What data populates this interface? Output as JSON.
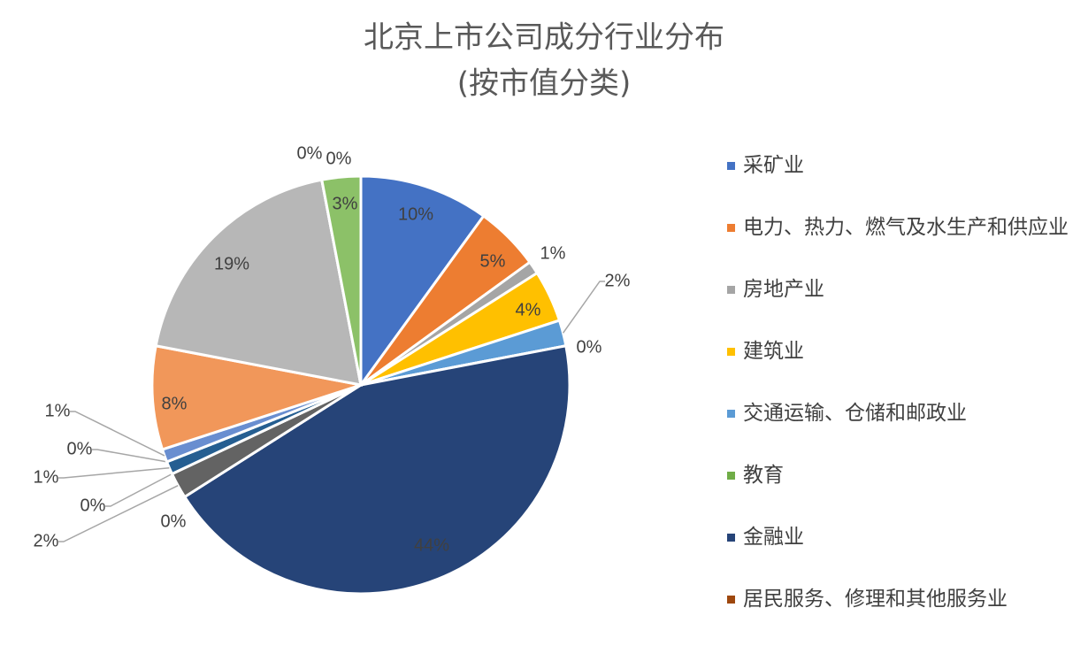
{
  "chart_data": {
    "type": "pie",
    "title": "北京上市公司成分行业分布",
    "subtitle": "(按市值分类)",
    "categories": [
      "采矿业",
      "电力、热力、燃气及水生产和供应业",
      "房地产业",
      "建筑业",
      "交通运输、仓储和邮政业",
      "教育",
      "金融业",
      "居民服务、修理和其他服务业",
      null,
      null,
      null,
      null,
      null,
      null,
      null,
      null,
      null,
      null
    ],
    "values": [
      10,
      5,
      1,
      4,
      2,
      0,
      44,
      0,
      2,
      0,
      1,
      0,
      1,
      8,
      19,
      0,
      0,
      3
    ],
    "value_labels": [
      "10%",
      "5%",
      "1%",
      "4%",
      "2%",
      "0%",
      "44%",
      "0%",
      "2%",
      "0%",
      "1%",
      "0%",
      "1%",
      "8%",
      "19%",
      "0%",
      "0%",
      "3%"
    ],
    "colors": [
      "#4472c4",
      "#ed7d31",
      "#a5a5a5",
      "#ffc000",
      "#5b9bd5",
      "#70ad47",
      "#264478",
      "#9e480e",
      "#636363",
      "#997300",
      "#255e91",
      "#43682b",
      "#698ed0",
      "#f1975a",
      "#b7b7b7",
      "#ffcd33",
      "#7cafdd",
      "#8cc168"
    ],
    "legend": "right"
  }
}
